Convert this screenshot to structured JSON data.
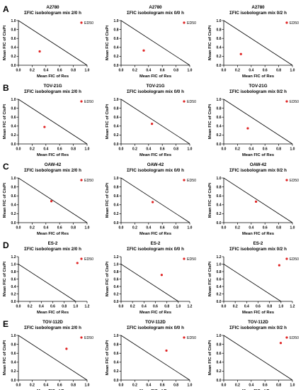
{
  "figure": {
    "rows": [
      {
        "letter": "A"
      },
      {
        "letter": "B"
      },
      {
        "letter": "C"
      },
      {
        "letter": "D"
      },
      {
        "letter": "E"
      }
    ]
  },
  "chart_data": [
    {
      "type": "scatter",
      "panel": "A",
      "title": "A2780",
      "subtitle": "ΣFIC isobologram mix 2/0 h",
      "xlabel": "Mean FIC of Res",
      "ylabel": "Mean FIC of CisPt",
      "xlim": [
        0,
        1.0
      ],
      "ylim": [
        0,
        1.0
      ],
      "xticks": [
        "0.0",
        "0.2",
        "0.4",
        "0.6",
        "0.8",
        "1.0"
      ],
      "yticks": [
        "0.0",
        "0.2",
        "0.4",
        "0.6",
        "0.8",
        "1.0"
      ],
      "additivity_line": [
        [
          0,
          1
        ],
        [
          1,
          0
        ]
      ],
      "points": [
        {
          "x": 0.31,
          "y": 0.31
        }
      ],
      "legend": "ED50",
      "marker_color": "#e02424"
    },
    {
      "type": "scatter",
      "panel": "A",
      "title": "A2780",
      "subtitle": "ΣFIC isobologram mix 0/0 h",
      "xlabel": "Mean FIC of Res",
      "ylabel": "Mean FIC of CisPt",
      "xlim": [
        0,
        1.0
      ],
      "ylim": [
        0,
        1.0
      ],
      "xticks": [
        "0.0",
        "0.2",
        "0.4",
        "0.6",
        "0.8",
        "1.0"
      ],
      "yticks": [
        "0.0",
        "0.2",
        "0.4",
        "0.6",
        "0.8",
        "1.0"
      ],
      "additivity_line": [
        [
          0,
          1
        ],
        [
          1,
          0
        ]
      ],
      "points": [
        {
          "x": 0.33,
          "y": 0.33
        }
      ],
      "legend": "ED50",
      "marker_color": "#e02424"
    },
    {
      "type": "scatter",
      "panel": "A",
      "title": "A2780",
      "subtitle": "ΣFIC isobologram mix 0/2 h",
      "xlabel": "Mean FIC of Res",
      "ylabel": "Mean FIC of CisPt",
      "xlim": [
        0,
        1.0
      ],
      "ylim": [
        0,
        1.0
      ],
      "xticks": [
        "0.0",
        "0.2",
        "0.4",
        "0.6",
        "0.8",
        "1.0"
      ],
      "yticks": [
        "0.0",
        "0.2",
        "0.4",
        "0.6",
        "0.8",
        "1.0"
      ],
      "additivity_line": [
        [
          0,
          1
        ],
        [
          1,
          0
        ]
      ],
      "points": [
        {
          "x": 0.25,
          "y": 0.25
        }
      ],
      "legend": "ED50",
      "marker_color": "#e02424"
    },
    {
      "type": "scatter",
      "panel": "B",
      "title": "TOV-21G",
      "subtitle": "ΣFIC isobologram mix 2/0 h",
      "xlabel": "Mean FIC of Res",
      "ylabel": "Mean FIC of CisPt",
      "xlim": [
        0,
        1.0
      ],
      "ylim": [
        0,
        1.0
      ],
      "xticks": [
        "0.0",
        "0.2",
        "0.4",
        "0.6",
        "0.8",
        "1.0"
      ],
      "yticks": [
        "0.0",
        "0.2",
        "0.4",
        "0.6",
        "0.8",
        "1.0"
      ],
      "additivity_line": [
        [
          0,
          1
        ],
        [
          1,
          0
        ]
      ],
      "points": [
        {
          "x": 0.38,
          "y": 0.38
        }
      ],
      "legend": "ED50",
      "marker_color": "#e02424"
    },
    {
      "type": "scatter",
      "panel": "B",
      "title": "TOV-21G",
      "subtitle": "ΣFIC isobologram mix 0/0 h",
      "xlabel": "Mean FIC of Res",
      "ylabel": "Mean FIC of CisPt",
      "xlim": [
        0,
        1.0
      ],
      "ylim": [
        0,
        1.0
      ],
      "xticks": [
        "0.0",
        "0.2",
        "0.4",
        "0.6",
        "0.8",
        "1.0"
      ],
      "yticks": [
        "0.0",
        "0.2",
        "0.4",
        "0.6",
        "0.8",
        "1.0"
      ],
      "additivity_line": [
        [
          0,
          1
        ],
        [
          1,
          0
        ]
      ],
      "points": [
        {
          "x": 0.45,
          "y": 0.45
        }
      ],
      "legend": "ED50",
      "marker_color": "#e02424"
    },
    {
      "type": "scatter",
      "panel": "B",
      "title": "TOV-21G",
      "subtitle": "ΣFIC isobologram mix 0/2 h",
      "xlabel": "Mean FIC of Res",
      "ylabel": "Mean FIC of CisPt",
      "xlim": [
        0,
        1.0
      ],
      "ylim": [
        0,
        1.0
      ],
      "xticks": [
        "0.0",
        "0.2",
        "0.4",
        "0.6",
        "0.8",
        "1.0"
      ],
      "yticks": [
        "0.0",
        "0.2",
        "0.4",
        "0.6",
        "0.8",
        "1.0"
      ],
      "additivity_line": [
        [
          0,
          1
        ],
        [
          1,
          0
        ]
      ],
      "points": [
        {
          "x": 0.35,
          "y": 0.35
        }
      ],
      "legend": "ED50",
      "marker_color": "#e02424"
    },
    {
      "type": "scatter",
      "panel": "C",
      "title": "OAW-42",
      "subtitle": "ΣFIC isobologram mix 2/0 h",
      "xlabel": "Mean FIC of Res",
      "ylabel": "Mean FIC of CisPt",
      "xlim": [
        0,
        1.0
      ],
      "ylim": [
        0,
        1.0
      ],
      "xticks": [
        "0.0",
        "0.2",
        "0.4",
        "0.6",
        "0.8",
        "1.0"
      ],
      "yticks": [
        "0.0",
        "0.2",
        "0.4",
        "0.6",
        "0.8",
        "1.0"
      ],
      "additivity_line": [
        [
          0,
          1
        ],
        [
          1,
          0
        ]
      ],
      "points": [
        {
          "x": 0.48,
          "y": 0.48
        }
      ],
      "legend": "ED50",
      "marker_color": "#e02424"
    },
    {
      "type": "scatter",
      "panel": "C",
      "title": "OAW-42",
      "subtitle": "ΣFIC isobologram mix 0/0 h",
      "xlabel": "Mean FIC of Res",
      "ylabel": "Mean FIC of CisPt",
      "xlim": [
        0,
        1.0
      ],
      "ylim": [
        0,
        1.0
      ],
      "xticks": [
        "0.0",
        "0.2",
        "0.4",
        "0.6",
        "0.8",
        "1.0"
      ],
      "yticks": [
        "0.0",
        "0.2",
        "0.4",
        "0.6",
        "0.8",
        "1.0"
      ],
      "additivity_line": [
        [
          0,
          1
        ],
        [
          1,
          0
        ]
      ],
      "points": [
        {
          "x": 0.46,
          "y": 0.46
        }
      ],
      "legend": "ED50",
      "marker_color": "#e02424"
    },
    {
      "type": "scatter",
      "panel": "C",
      "title": "OAW-42",
      "subtitle": "ΣFIC isobologram mix 0/2 h",
      "xlabel": "Mean FIC of Res",
      "ylabel": "Mean FIC of CisPt",
      "xlim": [
        0,
        1.0
      ],
      "ylim": [
        0,
        1.0
      ],
      "xticks": [
        "0.0",
        "0.2",
        "0.4",
        "0.6",
        "0.8",
        "1.0"
      ],
      "yticks": [
        "0.0",
        "0.2",
        "0.4",
        "0.6",
        "0.8",
        "1.0"
      ],
      "additivity_line": [
        [
          0,
          1
        ],
        [
          1,
          0
        ]
      ],
      "points": [
        {
          "x": 0.47,
          "y": 0.47
        }
      ],
      "legend": "ED50",
      "marker_color": "#e02424"
    },
    {
      "type": "scatter",
      "panel": "D",
      "title": "ES-2",
      "subtitle": "ΣFIC isobologram mix 2/0 h",
      "xlabel": "Mean FIC of Res",
      "ylabel": "Mean FIC of CisPt",
      "xlim": [
        0,
        1.2
      ],
      "ylim": [
        0,
        1.2
      ],
      "xticks": [
        "0.0",
        "0.2",
        "0.4",
        "0.6",
        "0.8",
        "1.0",
        "1.2"
      ],
      "yticks": [
        "0.0",
        "0.2",
        "0.4",
        "0.6",
        "0.8",
        "1.0",
        "1.2"
      ],
      "additivity_line": [
        [
          0,
          1
        ],
        [
          1,
          0
        ]
      ],
      "points": [
        {
          "x": 1.03,
          "y": 1.03
        }
      ],
      "legend": "ED50",
      "marker_color": "#e02424"
    },
    {
      "type": "scatter",
      "panel": "D",
      "title": "ES-2",
      "subtitle": "ΣFIC isobologram mix 0/0 h",
      "xlabel": "Mean FIC of Res",
      "ylabel": "Mean FIC of CisPt",
      "xlim": [
        0,
        1.2
      ],
      "ylim": [
        0,
        1.2
      ],
      "xticks": [
        "0.0",
        "0.2",
        "0.4",
        "0.6",
        "0.8",
        "1.0",
        "1.2"
      ],
      "yticks": [
        "0.0",
        "0.2",
        "0.4",
        "0.6",
        "0.8",
        "1.0",
        "1.2"
      ],
      "additivity_line": [
        [
          0,
          1
        ],
        [
          1,
          0
        ]
      ],
      "points": [
        {
          "x": 0.71,
          "y": 0.71
        }
      ],
      "legend": "ED50",
      "marker_color": "#e02424"
    },
    {
      "type": "scatter",
      "panel": "D",
      "title": "ES-2",
      "subtitle": "ΣFIC isobologram mix 0/2 h",
      "xlabel": "Mean FIC of Res",
      "ylabel": "Mean FIC of CisPt",
      "xlim": [
        0,
        1.2
      ],
      "ylim": [
        0,
        1.2
      ],
      "xticks": [
        "0.0",
        "0.2",
        "0.4",
        "0.6",
        "0.8",
        "1.0",
        "1.2"
      ],
      "yticks": [
        "0.0",
        "0.2",
        "0.4",
        "0.6",
        "0.8",
        "1.0",
        "1.2"
      ],
      "additivity_line": [
        [
          0,
          1
        ],
        [
          1,
          0
        ]
      ],
      "points": [
        {
          "x": 0.97,
          "y": 0.97
        }
      ],
      "legend": "ED50",
      "marker_color": "#e02424"
    },
    {
      "type": "scatter",
      "panel": "E",
      "title": "TOV-112D",
      "subtitle": "ΣFIC isobologram mix 2/0 h",
      "xlabel": "Mean FIC of Res",
      "ylabel": "Mean FIC of CisPt",
      "xlim": [
        0,
        1.0
      ],
      "ylim": [
        0,
        1.0
      ],
      "xticks": [
        "0.0",
        "0.2",
        "0.4",
        "0.6",
        "0.8",
        "1.0"
      ],
      "yticks": [
        "0.0",
        "0.2",
        "0.4",
        "0.6",
        "0.8",
        "1.0"
      ],
      "additivity_line": [
        [
          0,
          1
        ],
        [
          1,
          0
        ]
      ],
      "points": [
        {
          "x": 0.7,
          "y": 0.7
        }
      ],
      "legend": "ED50",
      "marker_color": "#e02424"
    },
    {
      "type": "scatter",
      "panel": "E",
      "title": "TOV-112D",
      "subtitle": "ΣFIC isobologram mix 0/0 h",
      "xlabel": "Mean FIC of Res",
      "ylabel": "Mean FIC of CisPt",
      "xlim": [
        0,
        1.0
      ],
      "ylim": [
        0,
        1.0
      ],
      "xticks": [
        "0.0",
        "0.2",
        "0.4",
        "0.6",
        "0.8",
        "1.0"
      ],
      "yticks": [
        "0.0",
        "0.2",
        "0.4",
        "0.6",
        "0.8",
        "1.0"
      ],
      "additivity_line": [
        [
          0,
          1
        ],
        [
          1,
          0
        ]
      ],
      "points": [
        {
          "x": 0.66,
          "y": 0.66
        }
      ],
      "legend": "ED50",
      "marker_color": "#e02424"
    },
    {
      "type": "scatter",
      "panel": "E",
      "title": "TOV-112D",
      "subtitle": "ΣFIC isobologram mix 0/2 h",
      "xlabel": "Mean FIC of Res",
      "ylabel": "Mean FIC of CisPt",
      "xlim": [
        0,
        1.0
      ],
      "ylim": [
        0,
        1.0
      ],
      "xticks": [
        "0.0",
        "0.2",
        "0.4",
        "0.6",
        "0.8",
        "1.0"
      ],
      "yticks": [
        "0.0",
        "0.2",
        "0.4",
        "0.6",
        "0.8",
        "1.0"
      ],
      "additivity_line": [
        [
          0,
          1
        ],
        [
          1,
          0
        ]
      ],
      "points": [
        {
          "x": 0.83,
          "y": 0.83
        }
      ],
      "legend": "ED50",
      "marker_color": "#e02424"
    }
  ]
}
